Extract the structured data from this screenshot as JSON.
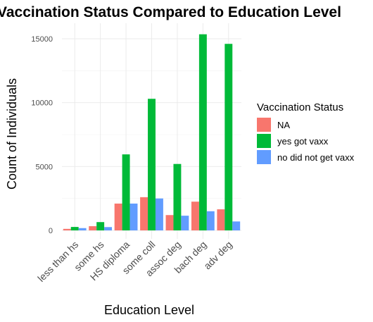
{
  "chart_data": {
    "type": "bar",
    "title": "Vaccination Status Compared to Education Level",
    "xlabel": "Education Level",
    "ylabel": "Count of Individuals",
    "categories": [
      "less than hs",
      "some hs",
      "HS diploma",
      "some coll",
      "assoc deg",
      "bach deg",
      "adv deg"
    ],
    "series": [
      {
        "name": "NA",
        "color": "#F8766D",
        "values": [
          120,
          330,
          2100,
          2600,
          1200,
          2250,
          1650
        ]
      },
      {
        "name": "yes got vaxx",
        "color": "#00BA38",
        "values": [
          270,
          650,
          5950,
          10300,
          5200,
          15350,
          14600
        ]
      },
      {
        "name": "no did not get vaxx",
        "color": "#619CFF",
        "values": [
          180,
          260,
          2100,
          2500,
          1150,
          1500,
          700
        ]
      }
    ],
    "ylim": [
      0,
      16200
    ],
    "yticks": [
      0,
      5000,
      10000,
      15000
    ],
    "grid": true,
    "legend": {
      "title": "Vaccination Status",
      "position": "right"
    }
  }
}
